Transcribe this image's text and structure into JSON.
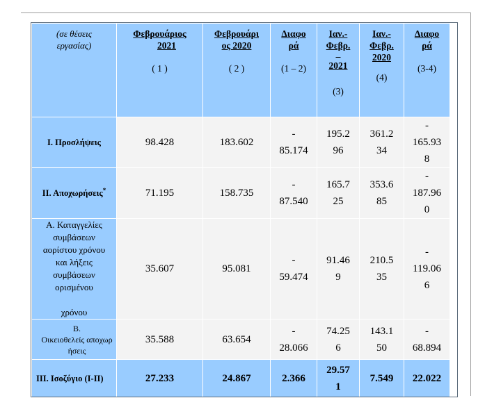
{
  "header": {
    "unit_label": "(σε θέσεις εργασίας)",
    "cols": [
      {
        "line1": "Φεβρουάριος",
        "line2": "2021",
        "note": "( 1 )"
      },
      {
        "line1": "Φεβρουάρι",
        "line2": "ος 2020",
        "note": "( 2 )"
      },
      {
        "line1": "Διαφο",
        "line2": "ρά",
        "note": "(1 – 2)"
      },
      {
        "line1": "Ιαν.-",
        "line2": "Φεβρ.",
        "line3": "_",
        "line4": "2021",
        "note": "(3)"
      },
      {
        "line1": "Ιαν.-",
        "line2": "Φεβρ.",
        "line3": "2020",
        "note": "(4)"
      },
      {
        "line1": "Διαφο",
        "line2": "ρά",
        "note": "(3-4)"
      }
    ]
  },
  "rows": [
    {
      "label": "Ι. Προσλήψεις",
      "values": [
        "98.428",
        "183.602",
        [
          "-",
          "85.174"
        ],
        [
          "195.2",
          "96"
        ],
        [
          "361.2",
          "34"
        ],
        [
          "-",
          "165.93",
          "8"
        ]
      ]
    },
    {
      "label": "ΙΙ. Αποχωρήσεις",
      "label_sup": "*",
      "values": [
        "71.195",
        "158.735",
        [
          "-",
          "87.540"
        ],
        [
          "165.7",
          "25"
        ],
        [
          "353.6",
          "85"
        ],
        [
          "-",
          "187.96",
          "0"
        ]
      ]
    },
    {
      "label_lines": [
        "Α. Καταγγελίες",
        "συμβάσεων",
        "αορίστου χρόνου",
        "και λήξεις",
        "συμβάσεων",
        "ορισμένου",
        "",
        "χρόνου"
      ],
      "values": [
        "35.607",
        "95.081",
        [
          "-",
          "59.474"
        ],
        [
          "91.46",
          "9"
        ],
        [
          "210.5",
          "35"
        ],
        [
          "-",
          "119.06",
          "6"
        ]
      ]
    },
    {
      "label_lines": [
        "Β.",
        "Οικειοθελείς αποχωρ",
        "ήσεις"
      ],
      "values": [
        "35.588",
        "63.654",
        [
          "-",
          "28.066"
        ],
        [
          "74.25",
          "6"
        ],
        [
          "143.1",
          "50"
        ],
        [
          "-",
          "68.894"
        ]
      ]
    },
    {
      "label": "ΙΙΙ. Ισοζύγιο (Ι-ΙΙ)",
      "values": [
        "27.233",
        "24.867",
        "2.366",
        [
          "29.57",
          "1"
        ],
        "7.549",
        "22.022"
      ]
    }
  ],
  "colors": {
    "header_blue": "#99ccff",
    "cell_gray": "#f3f3f3"
  }
}
